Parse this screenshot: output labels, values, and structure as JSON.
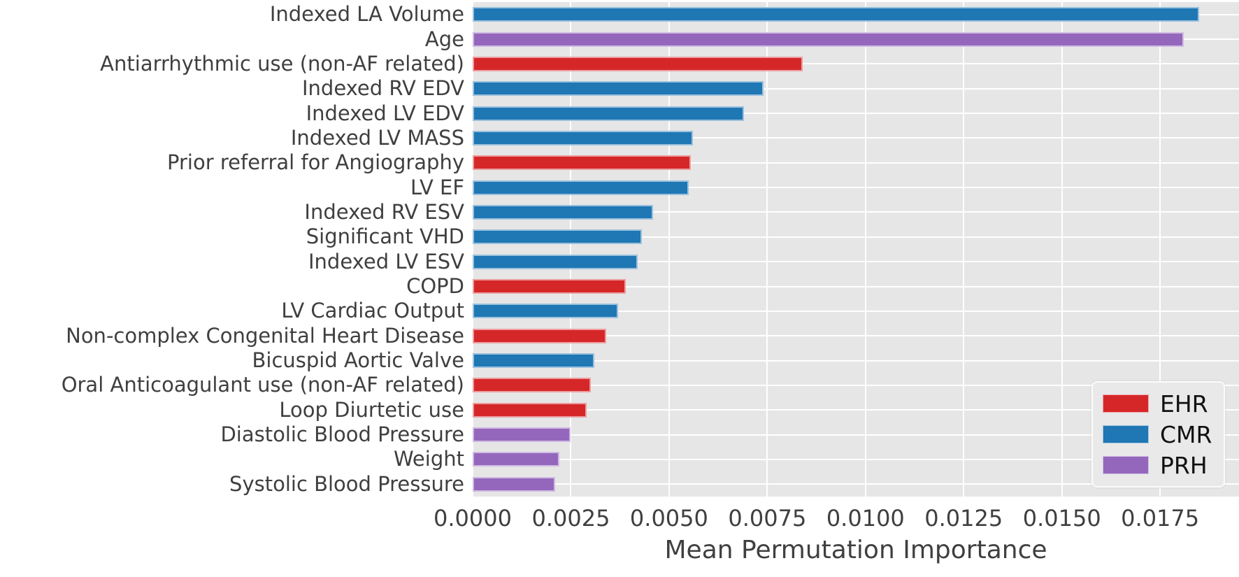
{
  "chart_data": {
    "type": "bar",
    "orientation": "horizontal",
    "xlabel": "Mean Permutation Importance",
    "ylabel": "",
    "xlim": [
      0,
      0.0195
    ],
    "grid": true,
    "plot_background": "#e6e6e6",
    "gridline_color": "#ffffff",
    "x_ticks": [
      {
        "label": "0.0000",
        "value": 0.0
      },
      {
        "label": "0.0025",
        "value": 0.0025
      },
      {
        "label": "0.0050",
        "value": 0.005
      },
      {
        "label": "0.0075",
        "value": 0.0075
      },
      {
        "label": "0.0100",
        "value": 0.01
      },
      {
        "label": "0.0125",
        "value": 0.0125
      },
      {
        "label": "0.0150",
        "value": 0.015
      },
      {
        "label": "0.0175",
        "value": 0.0175
      }
    ],
    "legend": {
      "position": "lower right",
      "entries": [
        {
          "label": "EHR",
          "color": "#d62728"
        },
        {
          "label": "CMR",
          "color": "#1f77b4"
        },
        {
          "label": "PRH",
          "color": "#9467bd"
        }
      ]
    },
    "bars": [
      {
        "label": "Indexed LA Volume",
        "value": 0.0185,
        "group": "CMR"
      },
      {
        "label": "Age",
        "value": 0.0181,
        "group": "PRH"
      },
      {
        "label": "Antiarrhythmic use (non-AF related)",
        "value": 0.0084,
        "group": "EHR"
      },
      {
        "label": "Indexed RV EDV",
        "value": 0.0074,
        "group": "CMR"
      },
      {
        "label": "Indexed LV EDV",
        "value": 0.0069,
        "group": "CMR"
      },
      {
        "label": "Indexed LV MASS",
        "value": 0.0056,
        "group": "CMR"
      },
      {
        "label": "Prior referral for Angiography",
        "value": 0.00555,
        "group": "EHR"
      },
      {
        "label": "LV EF",
        "value": 0.0055,
        "group": "CMR"
      },
      {
        "label": "Indexed RV ESV",
        "value": 0.0046,
        "group": "CMR"
      },
      {
        "label": "Significant VHD",
        "value": 0.0043,
        "group": "CMR"
      },
      {
        "label": "Indexed LV ESV",
        "value": 0.0042,
        "group": "CMR"
      },
      {
        "label": "COPD",
        "value": 0.0039,
        "group": "EHR"
      },
      {
        "label": "LV Cardiac Output",
        "value": 0.0037,
        "group": "CMR"
      },
      {
        "label": "Non-complex Congenital Heart Disease",
        "value": 0.0034,
        "group": "EHR"
      },
      {
        "label": "Bicuspid Aortic Valve",
        "value": 0.0031,
        "group": "CMR"
      },
      {
        "label": "Oral Anticoagulant use (non-AF related)",
        "value": 0.003,
        "group": "EHR"
      },
      {
        "label": "Loop Diurtetic use",
        "value": 0.0029,
        "group": "EHR"
      },
      {
        "label": "Diastolic Blood Pressure",
        "value": 0.0025,
        "group": "PRH"
      },
      {
        "label": "Weight",
        "value": 0.0022,
        "group": "PRH"
      },
      {
        "label": "Systolic Blood Pressure",
        "value": 0.0021,
        "group": "PRH"
      }
    ]
  }
}
